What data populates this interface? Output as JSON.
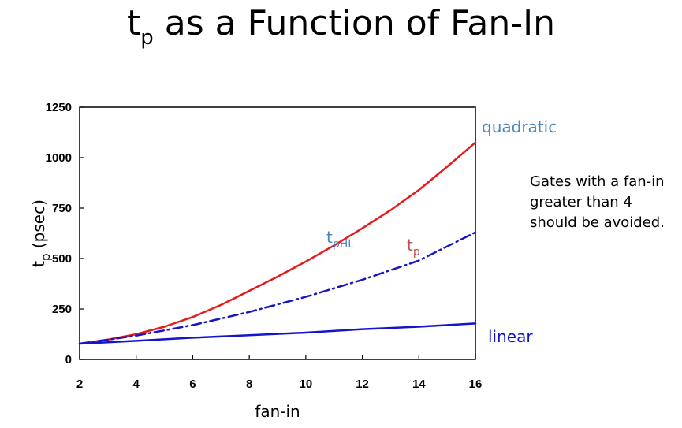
{
  "title": {
    "main": "t",
    "sub": "p",
    "rest": " as a Function of Fan-In"
  },
  "note": "Gates with a fan-in greater than 4 should be avoided.",
  "chart_data": {
    "type": "line",
    "xlabel": "fan-in",
    "ylabel": {
      "main": "t",
      "sub": "p",
      "rest": " (psec)"
    },
    "xlim": [
      2,
      16
    ],
    "ylim": [
      0,
      1250
    ],
    "xticks": [
      2,
      4,
      6,
      8,
      10,
      12,
      14,
      16
    ],
    "yticks": [
      0,
      250,
      500,
      750,
      1000,
      1250
    ],
    "grid": false,
    "series": [
      {
        "key": "quadratic",
        "color": "#e8191a",
        "style": "solid",
        "x": [
          2,
          3,
          4,
          5,
          6,
          7,
          8,
          9,
          10,
          11,
          12,
          13,
          14,
          15,
          16
        ],
        "y": [
          78,
          98,
          125,
          162,
          210,
          270,
          340,
          410,
          485,
          565,
          650,
          740,
          840,
          955,
          1075
        ]
      },
      {
        "key": "dashed",
        "color": "#1414cc",
        "style": "dashdot",
        "x": [
          2,
          4,
          6,
          8,
          10,
          12,
          14,
          16
        ],
        "y": [
          78,
          118,
          170,
          235,
          310,
          395,
          490,
          630
        ]
      },
      {
        "key": "linear",
        "color": "#1414cc",
        "style": "solid",
        "x": [
          2,
          4,
          6,
          8,
          10,
          12,
          14,
          16
        ],
        "y": [
          78,
          92,
          108,
          120,
          133,
          150,
          162,
          178
        ]
      }
    ],
    "annotations": [
      {
        "id": "quadratic",
        "text": "quadratic",
        "color": "#4a84c4"
      },
      {
        "id": "linear",
        "text": "linear",
        "color": "#1414cc"
      },
      {
        "id": "tpHL",
        "main": "t",
        "sub": "pHL",
        "color": "#4a84c4"
      },
      {
        "id": "tp",
        "main": "t",
        "sub": "p",
        "color": "#c0504d"
      }
    ]
  }
}
